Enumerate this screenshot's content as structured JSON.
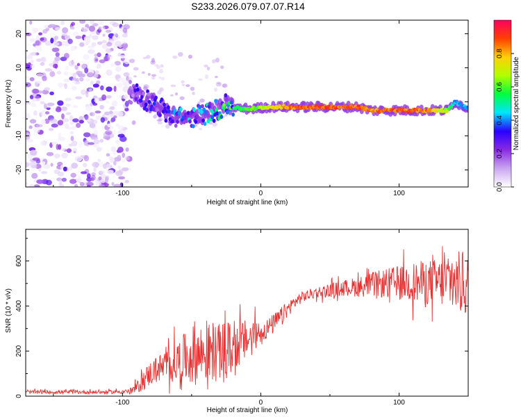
{
  "title": "S233.2026.079.07.07.R14",
  "chart_data": [
    {
      "type": "heatmap",
      "panel": "top",
      "xlabel": "Height of straight line (km)",
      "ylabel": "Frequency (Hz)",
      "xlim": [
        -170,
        150
      ],
      "ylim": [
        -25,
        24
      ],
      "xticks": [
        -100,
        0,
        100
      ],
      "yticks": [
        -20,
        -10,
        0,
        10,
        20
      ],
      "colorbar": {
        "label": "Normalized spectral amplitude",
        "range": [
          0.0,
          1.0
        ],
        "ticks": [
          0.0,
          0.2,
          0.4,
          0.6,
          0.8
        ],
        "colors": [
          "#ffffff",
          "#c9a6f0",
          "#8a2be2",
          "#2a00ff",
          "#00e5ff",
          "#00ff40",
          "#b0ff00",
          "#ffd000",
          "#ff4000",
          "#ff0060"
        ]
      },
      "features": {
        "noise_region_x": [
          -170,
          -95
        ],
        "track": {
          "x": [
            -95,
            -85,
            -75,
            -65,
            -55,
            -45,
            -35,
            -25,
            -15,
            -5,
            5,
            15,
            25,
            45,
            70,
            80,
            100,
            120,
            135,
            140,
            150
          ],
          "freq_hz": [
            3,
            1,
            -1,
            -4,
            -5,
            -4,
            -3,
            -1,
            -2,
            -2,
            -1.5,
            -1.5,
            -1.5,
            -1.5,
            -1.5,
            -2.5,
            -2.5,
            -2.5,
            -2.5,
            0,
            -2
          ],
          "amplitude": [
            0.25,
            0.3,
            0.3,
            0.35,
            0.4,
            0.4,
            0.45,
            0.55,
            0.6,
            0.65,
            0.75,
            0.85,
            0.95,
            0.95,
            0.95,
            0.9,
            0.95,
            0.9,
            0.7,
            0.45,
            0.45
          ]
        }
      }
    },
    {
      "type": "line",
      "panel": "bottom",
      "xlabel": "Height of straight line (km)",
      "ylabel": "SNR (10 * v/v)",
      "xlim": [
        -170,
        150
      ],
      "ylim": [
        0,
        740
      ],
      "xticks": [
        -100,
        0,
        100
      ],
      "yticks": [
        0,
        200,
        400,
        600
      ],
      "color": "#e83030",
      "series": [
        {
          "name": "SNR",
          "x": [
            -170,
            -150,
            -130,
            -110,
            -95,
            -90,
            -85,
            -80,
            -75,
            -70,
            -65,
            -60,
            -55,
            -50,
            -45,
            -40,
            -35,
            -30,
            -25,
            -20,
            -15,
            -10,
            -5,
            0,
            5,
            10,
            15,
            20,
            25,
            30,
            40,
            50,
            60,
            70,
            80,
            90,
            100,
            110,
            120,
            130,
            140,
            145,
            150
          ],
          "mean": [
            18,
            18,
            18,
            18,
            22,
            35,
            70,
            100,
            120,
            130,
            140,
            155,
            170,
            180,
            190,
            185,
            200,
            195,
            205,
            215,
            235,
            250,
            270,
            285,
            300,
            325,
            355,
            390,
            420,
            440,
            460,
            470,
            480,
            485,
            495,
            500,
            505,
            505,
            505,
            505,
            505,
            500,
            500
          ],
          "spread": [
            8,
            8,
            8,
            8,
            10,
            25,
            45,
            55,
            60,
            70,
            80,
            95,
            110,
            130,
            140,
            120,
            140,
            125,
            130,
            110,
            100,
            90,
            70,
            50,
            45,
            45,
            40,
            35,
            30,
            25,
            25,
            30,
            35,
            45,
            55,
            65,
            75,
            90,
            100,
            110,
            130,
            150,
            150
          ]
        }
      ]
    }
  ]
}
